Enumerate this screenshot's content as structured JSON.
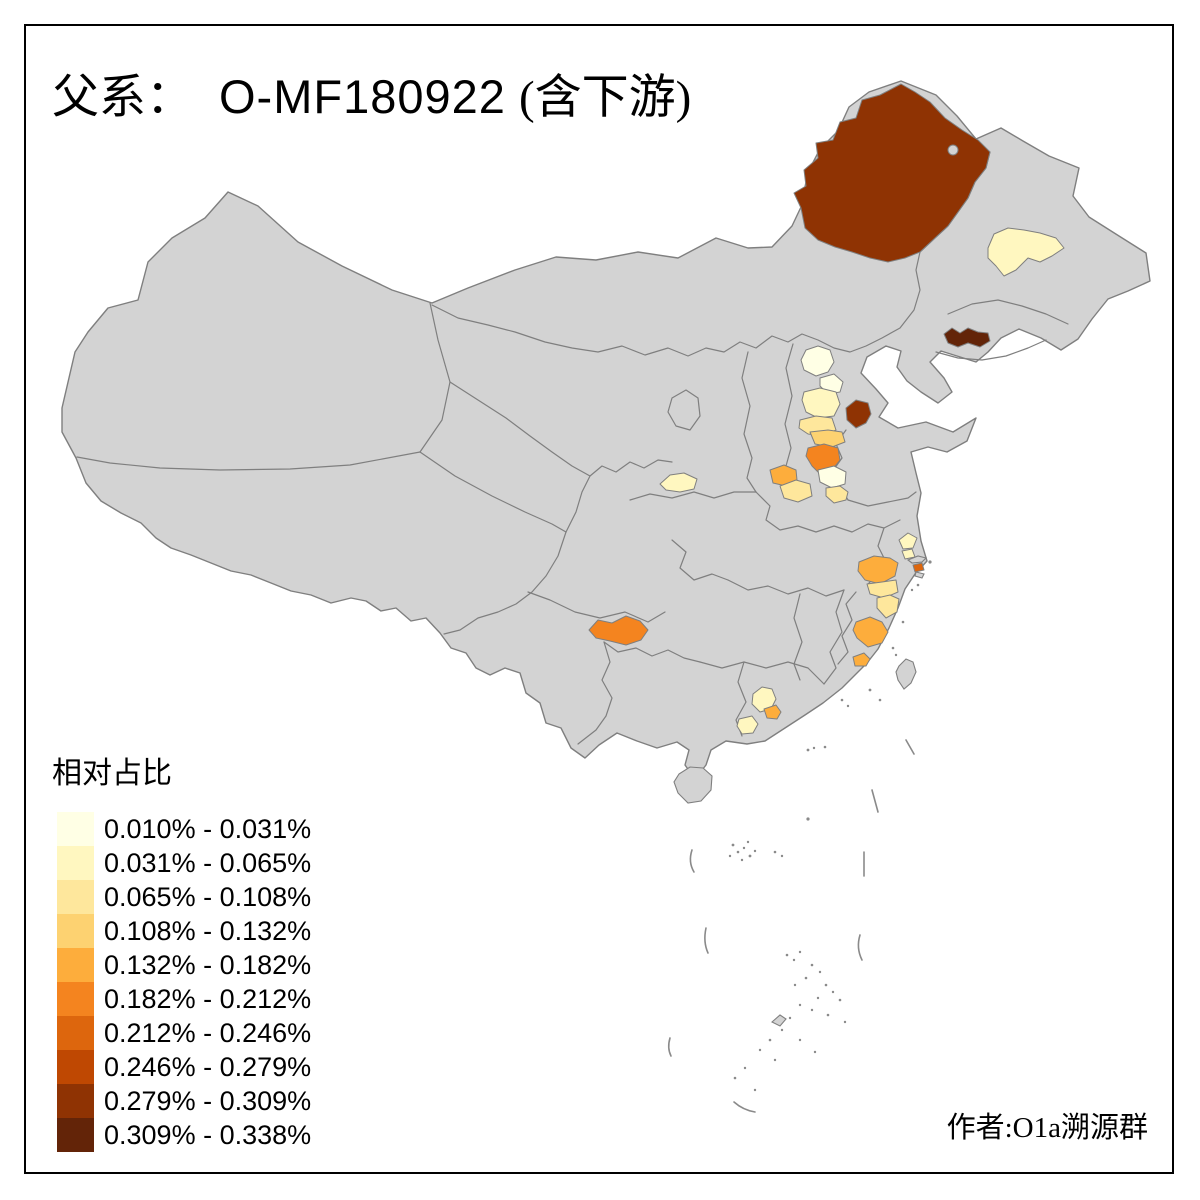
{
  "title": {
    "prefix": "父系：",
    "code": "O-MF180922",
    "suffix": "(含下游)"
  },
  "credit": "作者:O1a溯源群",
  "legend": {
    "title": "相对占比",
    "classes": [
      {
        "label": "0.010% - 0.031%",
        "color": "#FFFFE5"
      },
      {
        "label": "0.031% - 0.065%",
        "color": "#FFF7C0"
      },
      {
        "label": "0.065% - 0.108%",
        "color": "#FEE79C"
      },
      {
        "label": "0.108% - 0.132%",
        "color": "#FDD271"
      },
      {
        "label": "0.132% - 0.182%",
        "color": "#FDAD3C"
      },
      {
        "label": "0.182% - 0.212%",
        "color": "#F4841F"
      },
      {
        "label": "0.212% - 0.246%",
        "color": "#DD660D"
      },
      {
        "label": "0.246% - 0.279%",
        "color": "#BF4802"
      },
      {
        "label": "0.279% - 0.309%",
        "color": "#8F3303"
      },
      {
        "label": "0.309% - 0.338%",
        "color": "#632408"
      }
    ]
  },
  "map": {
    "colors": {
      "land": "#D3D3D3",
      "border": "#7F7F7F",
      "sea": "#FFFFFF",
      "frame": "#000000"
    },
    "regions": [
      {
        "id": "r01",
        "area": "northeast-large",
        "class": 9,
        "range": "0.279% - 0.309%"
      },
      {
        "id": "r02",
        "area": "northeast-pale",
        "class": 2,
        "range": "0.031% - 0.065%"
      },
      {
        "id": "r03",
        "area": "northeast-bar",
        "class": 10,
        "range": "0.309% - 0.338%"
      },
      {
        "id": "r04",
        "area": "bohai-south-dark",
        "class": 9,
        "range": "0.279% - 0.309%"
      },
      {
        "id": "r05",
        "area": "beijing-pale",
        "class": 1,
        "range": "0.010% - 0.031%"
      },
      {
        "id": "r06",
        "area": "south-of-beijing",
        "class": 1,
        "range": "0.010% - 0.031%"
      },
      {
        "id": "r07",
        "area": "hebei-yellow",
        "class": 2,
        "range": "0.031% - 0.065%"
      },
      {
        "id": "r08",
        "area": "hebei-cream",
        "class": 3,
        "range": "0.065% - 0.108%"
      },
      {
        "id": "r09",
        "area": "hebei-light-orange",
        "class": 4,
        "range": "0.108% - 0.132%"
      },
      {
        "id": "r10",
        "area": "north-henan-orange",
        "class": 6,
        "range": "0.182% - 0.212%"
      },
      {
        "id": "r11",
        "area": "west-henan-orange",
        "class": 5,
        "range": "0.132% - 0.182%"
      },
      {
        "id": "r12",
        "area": "henan-pale",
        "class": 3,
        "range": "0.065% - 0.108%"
      },
      {
        "id": "r13",
        "area": "sw-shandong-pale",
        "class": 1,
        "range": "0.010% - 0.031%"
      },
      {
        "id": "r14",
        "area": "sw-shandong-cream",
        "class": 3,
        "range": "0.065% - 0.108%"
      },
      {
        "id": "r15",
        "area": "shaanxi-pale",
        "class": 2,
        "range": "0.031% - 0.065%"
      },
      {
        "id": "r16",
        "area": "southwest-orange",
        "class": 6,
        "range": "0.182% - 0.212%"
      },
      {
        "id": "r17",
        "area": "jiangsu-coast-pale",
        "class": 2,
        "range": "0.031% - 0.065%"
      },
      {
        "id": "r18",
        "area": "jiangsu-south-pale",
        "class": 2,
        "range": "0.031% - 0.065%"
      },
      {
        "id": "r19",
        "area": "shanghai-dark-orange",
        "class": 7,
        "range": "0.212% - 0.246%"
      },
      {
        "id": "r20",
        "area": "north-zhejiang-orange",
        "class": 5,
        "range": "0.132% - 0.182%"
      },
      {
        "id": "r21",
        "area": "mid-zhejiang-cream",
        "class": 3,
        "range": "0.065% - 0.108%"
      },
      {
        "id": "r22",
        "area": "coast-zhejiang-cream",
        "class": 3,
        "range": "0.065% - 0.108%"
      },
      {
        "id": "r23",
        "area": "south-zhejiang-orange",
        "class": 5,
        "range": "0.132% - 0.182%"
      },
      {
        "id": "r24",
        "area": "fujian-coast-orange",
        "class": 5,
        "range": "0.132% - 0.182%"
      },
      {
        "id": "r25",
        "area": "north-guangdong-pale",
        "class": 2,
        "range": "0.031% - 0.065%"
      },
      {
        "id": "r26",
        "area": "guangzhou-orange",
        "class": 5,
        "range": "0.132% - 0.182%"
      },
      {
        "id": "r27",
        "area": "west-guangdong-pale",
        "class": 2,
        "range": "0.031% - 0.065%"
      }
    ]
  }
}
